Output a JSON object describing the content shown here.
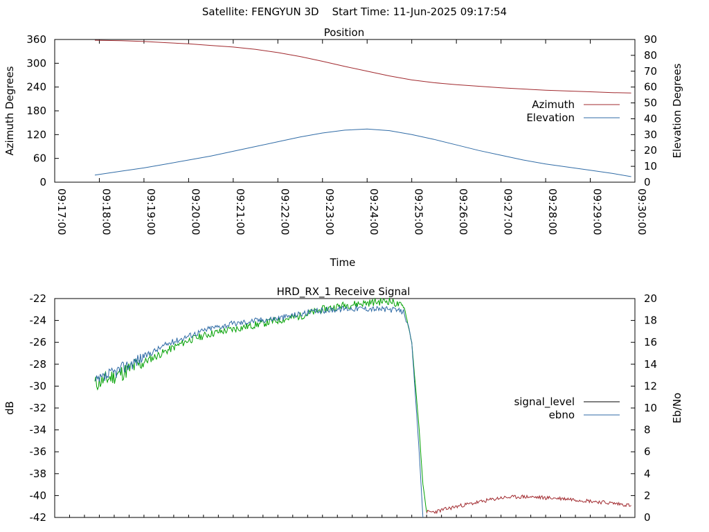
{
  "header": {
    "title": "Satellite: FENGYUN 3D    Start Time: 11-Jun-2025 09:17:54"
  },
  "chart_data": [
    {
      "type": "line",
      "title": "Position",
      "xlabel": "Time",
      "ylabel": "Azimuth Degrees",
      "y2label": "Elevation Degrees",
      "xlim": [
        "09:17:00",
        "09:30:00"
      ],
      "x_ticks": [
        "09:17:00",
        "09:18:00",
        "09:19:00",
        "09:20:00",
        "09:21:00",
        "09:22:00",
        "09:23:00",
        "09:24:00",
        "09:25:00",
        "09:26:00",
        "09:27:00",
        "09:28:00",
        "09:29:00",
        "09:30:00"
      ],
      "ylim": [
        0,
        360
      ],
      "y_ticks": [
        0,
        60,
        120,
        180,
        240,
        300,
        360
      ],
      "y2lim": [
        0,
        90
      ],
      "y2_ticks": [
        0,
        10,
        20,
        30,
        40,
        50,
        60,
        70,
        80,
        90
      ],
      "legend_position": "right",
      "series": [
        {
          "name": "Azimuth",
          "axis": "y",
          "color": "#a0282d",
          "x": [
            "09:17:54",
            "09:18:30",
            "09:19:00",
            "09:19:30",
            "09:20:00",
            "09:20:30",
            "09:21:00",
            "09:21:30",
            "09:22:00",
            "09:22:30",
            "09:23:00",
            "09:23:30",
            "09:24:00",
            "09:24:30",
            "09:25:00",
            "09:25:30",
            "09:26:00",
            "09:26:30",
            "09:27:00",
            "09:27:30",
            "09:28:00",
            "09:28:30",
            "09:29:00",
            "09:29:30",
            "09:29:55"
          ],
          "values": [
            358,
            357,
            355,
            352,
            349,
            345,
            341,
            335,
            327,
            317,
            305,
            292,
            280,
            268,
            258,
            251,
            246,
            242,
            238,
            235,
            232,
            230,
            228,
            226,
            225
          ]
        },
        {
          "name": "Elevation",
          "axis": "y2",
          "color": "#2e6aa5",
          "x": [
            "09:17:54",
            "09:18:30",
            "09:19:00",
            "09:19:30",
            "09:20:00",
            "09:20:30",
            "09:21:00",
            "09:21:30",
            "09:22:00",
            "09:22:30",
            "09:23:00",
            "09:23:30",
            "09:24:00",
            "09:24:30",
            "09:25:00",
            "09:25:30",
            "09:26:00",
            "09:26:30",
            "09:27:00",
            "09:27:30",
            "09:28:00",
            "09:28:30",
            "09:29:00",
            "09:29:30",
            "09:29:55"
          ],
          "values": [
            4.5,
            7,
            9,
            11.5,
            14,
            16.5,
            19.5,
            22.5,
            25.5,
            28.5,
            31,
            32.8,
            33.5,
            32.5,
            30,
            27,
            23.5,
            20,
            17,
            14,
            11.5,
            9.5,
            7.5,
            5.5,
            3.5
          ]
        }
      ]
    },
    {
      "type": "line",
      "title": "HRD_RX_1 Receive Signal",
      "xlabel": "",
      "ylabel": "dB",
      "y2label": "Eb/No",
      "xlim": [
        "09:17:00",
        "09:30:00"
      ],
      "ylim": [
        -42,
        -22
      ],
      "y_ticks": [
        -42,
        -40,
        -38,
        -36,
        -34,
        -32,
        -30,
        -28,
        -26,
        -24,
        -22
      ],
      "y2lim": [
        0,
        20
      ],
      "y2_ticks": [
        0,
        2,
        4,
        6,
        8,
        10,
        12,
        14,
        16,
        18,
        20
      ],
      "legend_position": "right",
      "legend": [
        {
          "name": "signal_level",
          "color": "#000000"
        },
        {
          "name": "ebno",
          "color": "#2e6aa5"
        }
      ],
      "series": [
        {
          "name": "signal_level",
          "axis": "y",
          "color": "#00a000",
          "note_color_after_loss": "#a0282d",
          "x": [
            "09:17:54",
            "09:18:30",
            "09:19:00",
            "09:19:30",
            "09:20:00",
            "09:20:30",
            "09:21:00",
            "09:21:30",
            "09:22:00",
            "09:22:30",
            "09:23:00",
            "09:23:30",
            "09:24:00",
            "09:24:30",
            "09:24:50",
            "09:25:00",
            "09:25:10",
            "09:25:15",
            "09:25:20",
            "09:25:30",
            "09:26:00",
            "09:26:30",
            "09:27:00",
            "09:27:30",
            "09:28:00",
            "09:28:30",
            "09:29:00",
            "09:29:30",
            "09:29:55"
          ],
          "values": [
            -29.8,
            -28.8,
            -27.8,
            -26.8,
            -25.8,
            -25.2,
            -24.8,
            -24.4,
            -24.0,
            -23.6,
            -23.0,
            -22.6,
            -22.4,
            -22.2,
            -22.8,
            -26.0,
            -34.0,
            -39.0,
            -41.5,
            -41.5,
            -41.0,
            -40.6,
            -40.2,
            -40.1,
            -40.2,
            -40.3,
            -40.5,
            -40.7,
            -40.9
          ]
        },
        {
          "name": "ebno",
          "axis": "y2",
          "color": "#2e6aa5",
          "x": [
            "09:17:54",
            "09:18:30",
            "09:19:00",
            "09:19:30",
            "09:20:00",
            "09:20:30",
            "09:21:00",
            "09:21:30",
            "09:22:00",
            "09:22:30",
            "09:23:00",
            "09:23:30",
            "09:24:00",
            "09:24:30",
            "09:24:50",
            "09:25:00",
            "09:25:10",
            "09:25:15"
          ],
          "values": [
            12.3,
            13.6,
            14.7,
            15.8,
            16.6,
            17.3,
            17.7,
            18.0,
            18.2,
            18.6,
            18.9,
            19.1,
            19.1,
            19.0,
            18.8,
            16.0,
            6.0,
            0
          ]
        }
      ]
    }
  ]
}
